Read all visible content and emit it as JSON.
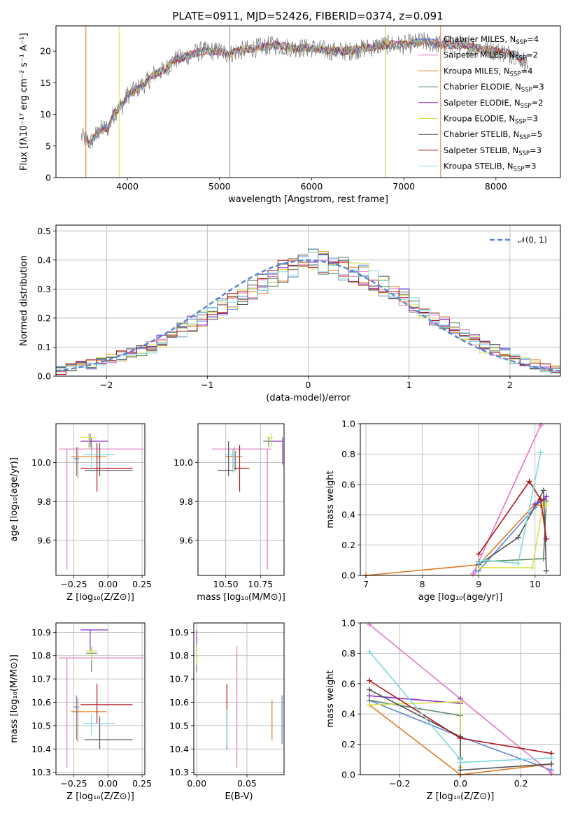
{
  "title": "PLATE=0911, MJD=52426, FIBERID=0374, z=0.091",
  "colors": {
    "Chabrier MILES": "#5b86d4",
    "Salpeter MILES": "#e377c2",
    "Kroupa MILES": "#e07b22",
    "Chabrier ELODIE": "#5e8a64",
    "Salpeter ELODIE": "#8b2fc9",
    "Kroupa ELODIE": "#d6e04a",
    "Chabrier STELIB": "#555555",
    "Salpeter STELIB": "#b0161c",
    "Kroupa STELIB": "#7fd8e0"
  },
  "chart_data": [
    {
      "id": "spectrum",
      "type": "line",
      "xlabel": "wavelength [Angstrom, rest frame]",
      "ylabel": "Flux [fλ10⁻¹⁷ erg cm⁻² s⁻¹ A⁻¹]",
      "xlim": [
        3225,
        8700
      ],
      "ylim": [
        0,
        24
      ],
      "xticks": [
        "4000",
        "5000",
        "6000",
        "7000",
        "8000"
      ],
      "yticks": [
        "0",
        "5",
        "10",
        "15",
        "20"
      ],
      "legend_position": "right",
      "legend": [
        "Chabrier MILES, N_SSP=4",
        "Salpeter MILES, N_SSP=2",
        "Kroupa MILES, N_SSP=4",
        "Chabrier ELODIE, N_SSP=3",
        "Salpeter ELODIE, N_SSP=2",
        "Kroupa ELODIE, N_SSP=3",
        "Chabrier STELIB, N_SSP=5",
        "Salpeter STELIB, N_SSP=3",
        "Kroupa STELIB, N_SSP=3"
      ],
      "continuum": {
        "x": [
          3500,
          3600,
          3700,
          3800,
          3850,
          3900,
          3950,
          4000,
          4100,
          4200,
          4300,
          4400,
          4500,
          4600,
          4700,
          4800,
          4900,
          5000,
          5100,
          5200,
          5400,
          5600,
          5800,
          6000,
          6200,
          6400,
          6600,
          6800,
          7000,
          7200,
          7400,
          7600,
          7800,
          8000,
          8200,
          8350
        ],
        "y": [
          6.5,
          5.5,
          7.5,
          8.0,
          10.0,
          11.0,
          11.5,
          13.0,
          14.0,
          15.0,
          16.5,
          17.0,
          18.5,
          19.0,
          19.5,
          20.0,
          20.0,
          20.0,
          19.5,
          20.0,
          20.5,
          21.0,
          20.5,
          20.5,
          20.0,
          20.0,
          20.5,
          21.0,
          21.0,
          21.5,
          21.0,
          21.0,
          20.5,
          20.0,
          19.5,
          18.0
        ]
      }
    },
    {
      "id": "residuals",
      "type": "bar",
      "xlabel": "(data-model)/error",
      "ylabel": "Normed distribution",
      "xlim": [
        -2.5,
        2.5
      ],
      "ylim": [
        0,
        0.52
      ],
      "xticks": [
        "−2",
        "−1",
        "0",
        "1",
        "2"
      ],
      "yticks": [
        "0.0",
        "0.1",
        "0.2",
        "0.3",
        "0.4",
        "0.5"
      ],
      "legend_position": "top-right",
      "gaussian_label": "𝒩(0, 1)",
      "bin_edges_start": -2.5,
      "bin_width": 0.1,
      "base_values": [
        0.02,
        0.03,
        0.035,
        0.04,
        0.05,
        0.06,
        0.07,
        0.08,
        0.09,
        0.1,
        0.12,
        0.14,
        0.16,
        0.18,
        0.2,
        0.22,
        0.24,
        0.26,
        0.28,
        0.3,
        0.32,
        0.34,
        0.36,
        0.38,
        0.4,
        0.4,
        0.39,
        0.38,
        0.37,
        0.36,
        0.35,
        0.33,
        0.31,
        0.29,
        0.27,
        0.25,
        0.22,
        0.2,
        0.18,
        0.16,
        0.14,
        0.12,
        0.1,
        0.09,
        0.08,
        0.06,
        0.05,
        0.04,
        0.03,
        0.025
      ]
    },
    {
      "id": "age-vs-Z",
      "type": "scatter",
      "xlabel": "Z [log₁₀(Z/Z⊙)]",
      "ylabel": "age  [log₁₀(age/yr)]",
      "xlim": [
        -0.38,
        0.27
      ],
      "ylim": [
        9.42,
        10.2
      ],
      "xticks": [
        "−0.25",
        "0.00",
        "0.25"
      ],
      "yticks": [
        "9.6",
        "9.8",
        "10.0"
      ],
      "points": [
        {
          "model": "Chabrier MILES",
          "x": -0.23,
          "xlo": -0.25,
          "xhi": -0.21,
          "y": 10.02,
          "ylo": 9.93,
          "yhi": 10.08
        },
        {
          "model": "Salpeter MILES",
          "x": -0.3,
          "xlo": -0.36,
          "xhi": 0.26,
          "y": 10.07,
          "ylo": 9.45,
          "yhi": 10.07
        },
        {
          "model": "Kroupa MILES",
          "x": -0.22,
          "xlo": -0.27,
          "xhi": -0.01,
          "y": 10.03,
          "ylo": 9.92,
          "yhi": 10.08
        },
        {
          "model": "Chabrier ELODIE",
          "x": -0.12,
          "xlo": -0.16,
          "xhi": -0.08,
          "y": 10.11,
          "ylo": 10.05,
          "yhi": 10.13
        },
        {
          "model": "Salpeter ELODIE",
          "x": -0.13,
          "xlo": -0.2,
          "xhi": 0.0,
          "y": 10.11,
          "ylo": 10.08,
          "yhi": 10.15
        },
        {
          "model": "Kroupa ELODIE",
          "x": -0.14,
          "xlo": -0.2,
          "xhi": -0.08,
          "y": 10.13,
          "ylo": 10.07,
          "yhi": 10.15
        },
        {
          "model": "Chabrier STELIB",
          "x": -0.06,
          "xlo": -0.17,
          "xhi": 0.18,
          "y": 9.96,
          "ylo": 9.93,
          "yhi": 10.1
        },
        {
          "model": "Salpeter STELIB",
          "x": -0.08,
          "xlo": -0.2,
          "xhi": 0.18,
          "y": 9.97,
          "ylo": 9.85,
          "yhi": 10.1
        },
        {
          "model": "Kroupa STELIB",
          "x": -0.12,
          "xlo": -0.18,
          "xhi": 0.05,
          "y": 10.04,
          "ylo": 9.95,
          "yhi": 10.07
        }
      ]
    },
    {
      "id": "age-vs-mass",
      "type": "scatter",
      "xlabel": "mass [log₁₀(M/M⊙)]",
      "ylabel": "",
      "xlim": [
        10.3,
        10.92
      ],
      "ylim": [
        9.42,
        10.2
      ],
      "xticks": [
        "10.50",
        "10.75"
      ],
      "yticks": [
        "9.6",
        "9.8",
        "10.0"
      ],
      "points": [
        {
          "model": "Chabrier MILES",
          "x": 10.57,
          "xlo": 10.5,
          "xhi": 10.6,
          "y": 10.03,
          "ylo": 9.96,
          "yhi": 10.06
        },
        {
          "model": "Salpeter MILES",
          "x": 10.8,
          "xlo": 10.4,
          "xhi": 10.83,
          "y": 10.07,
          "ylo": 9.45,
          "yhi": 10.07
        },
        {
          "model": "Kroupa MILES",
          "x": 10.56,
          "xlo": 10.5,
          "xhi": 10.62,
          "y": 10.03,
          "ylo": 9.95,
          "yhi": 10.08
        },
        {
          "model": "Chabrier ELODIE",
          "x": 10.81,
          "xlo": 10.77,
          "xhi": 10.84,
          "y": 10.11,
          "ylo": 10.08,
          "yhi": 10.13
        },
        {
          "model": "Salpeter ELODIE",
          "x": 10.91,
          "xlo": 10.82,
          "xhi": 10.91,
          "y": 10.11,
          "ylo": 9.99,
          "yhi": 10.13
        },
        {
          "model": "Kroupa ELODIE",
          "x": 10.83,
          "xlo": 10.79,
          "xhi": 10.84,
          "y": 10.13,
          "ylo": 10.08,
          "yhi": 10.15
        },
        {
          "model": "Chabrier STELIB",
          "x": 10.52,
          "xlo": 10.44,
          "xhi": 10.55,
          "y": 9.96,
          "ylo": 9.93,
          "yhi": 10.11
        },
        {
          "model": "Salpeter STELIB",
          "x": 10.6,
          "xlo": 10.56,
          "xhi": 10.67,
          "y": 9.97,
          "ylo": 9.85,
          "yhi": 10.09
        },
        {
          "model": "Kroupa STELIB",
          "x": 10.55,
          "xlo": 10.49,
          "xhi": 10.57,
          "y": 10.04,
          "ylo": 9.95,
          "yhi": 10.07
        }
      ]
    },
    {
      "id": "weight-vs-age",
      "type": "line",
      "xlabel": "age  [log₁₀(age/yr)]",
      "ylabel": "mass weight",
      "xlim": [
        6.9,
        10.45
      ],
      "ylim": [
        0,
        1.0
      ],
      "xticks": [
        "7",
        "8",
        "9",
        "10"
      ],
      "yticks": [
        "0.0",
        "0.2",
        "0.4",
        "0.6",
        "0.8",
        "1.0"
      ],
      "series": [
        {
          "model": "Chabrier MILES",
          "x": [
            8.95,
            9.0,
            10.0,
            10.1
          ],
          "y": [
            0.03,
            0.03,
            0.45,
            0.49
          ]
        },
        {
          "model": "Salpeter MILES",
          "x": [
            8.9,
            10.1
          ],
          "y": [
            0.01,
            0.99
          ]
        },
        {
          "model": "Kroupa MILES",
          "x": [
            7.0,
            9.0,
            10.0,
            10.1
          ],
          "y": [
            0.0,
            0.07,
            0.47,
            0.46
          ]
        },
        {
          "model": "Chabrier ELODIE",
          "x": [
            9.0,
            10.15,
            10.2
          ],
          "y": [
            0.09,
            0.11,
            0.49
          ]
        },
        {
          "model": "Salpeter ELODIE",
          "x": [
            10.0,
            10.15,
            10.2
          ],
          "y": [
            0.47,
            0.5,
            0.52
          ]
        },
        {
          "model": "Kroupa ELODIE",
          "x": [
            9.0,
            9.95,
            10.15,
            10.2
          ],
          "y": [
            0.05,
            0.05,
            0.48,
            0.46
          ]
        },
        {
          "model": "Chabrier STELIB",
          "x": [
            9.0,
            9.7,
            10.15,
            10.2
          ],
          "y": [
            0.07,
            0.25,
            0.56,
            0.03
          ]
        },
        {
          "model": "Salpeter STELIB",
          "x": [
            9.0,
            9.9,
            10.1,
            10.2
          ],
          "y": [
            0.14,
            0.62,
            0.5,
            0.24
          ]
        },
        {
          "model": "Kroupa STELIB",
          "x": [
            9.0,
            9.1,
            9.7,
            10.1
          ],
          "y": [
            0.08,
            0.1,
            0.08,
            0.81
          ]
        }
      ]
    },
    {
      "id": "mass-vs-Z",
      "type": "scatter",
      "xlabel": "Z [log₁₀(Z/Z⊙)]",
      "ylabel": "mass [log₁₀(M/M⊙)]",
      "xlim": [
        -0.38,
        0.27
      ],
      "ylim": [
        10.29,
        10.94
      ],
      "xticks": [
        "−0.25",
        "0.00",
        "0.25"
      ],
      "yticks": [
        "10.3",
        "10.4",
        "10.5",
        "10.6",
        "10.7",
        "10.8",
        "10.9"
      ],
      "points": [
        {
          "model": "Chabrier MILES",
          "x": -0.23,
          "xlo": -0.25,
          "xhi": -0.21,
          "y": 10.58,
          "ylo": 10.44,
          "yhi": 10.63
        },
        {
          "model": "Salpeter MILES",
          "x": -0.3,
          "xlo": -0.36,
          "xhi": 0.26,
          "y": 10.79,
          "ylo": 10.32,
          "yhi": 10.79
        },
        {
          "model": "Kroupa MILES",
          "x": -0.22,
          "xlo": -0.27,
          "xhi": -0.01,
          "y": 10.56,
          "ylo": 10.43,
          "yhi": 10.62
        },
        {
          "model": "Chabrier ELODIE",
          "x": -0.12,
          "xlo": -0.16,
          "xhi": -0.08,
          "y": 10.81,
          "ylo": 10.73,
          "yhi": 10.84
        },
        {
          "model": "Salpeter ELODIE",
          "x": -0.13,
          "xlo": -0.2,
          "xhi": 0.0,
          "y": 10.91,
          "ylo": 10.82,
          "yhi": 10.91
        },
        {
          "model": "Kroupa ELODIE",
          "x": -0.12,
          "xlo": -0.16,
          "xhi": -0.08,
          "y": 10.82,
          "ylo": 10.78,
          "yhi": 10.84
        },
        {
          "model": "Chabrier STELIB",
          "x": -0.06,
          "xlo": -0.17,
          "xhi": 0.18,
          "y": 10.44,
          "ylo": 10.4,
          "yhi": 10.54
        },
        {
          "model": "Salpeter STELIB",
          "x": -0.08,
          "xlo": -0.2,
          "xhi": 0.18,
          "y": 10.59,
          "ylo": 10.51,
          "yhi": 10.68
        },
        {
          "model": "Kroupa STELIB",
          "x": -0.12,
          "xlo": -0.18,
          "xhi": 0.05,
          "y": 10.51,
          "ylo": 10.46,
          "yhi": 10.55
        }
      ]
    },
    {
      "id": "mass-vs-EBV",
      "type": "scatter",
      "xlabel": "E(B-V)",
      "ylabel": "",
      "xlim": [
        -0.003,
        0.087
      ],
      "ylim": [
        10.29,
        10.94
      ],
      "xticks": [
        "0.00",
        "0.05"
      ],
      "yticks": [
        "10.3",
        "10.4",
        "10.5",
        "10.6",
        "10.7",
        "10.8",
        "10.9"
      ],
      "points": [
        {
          "model": "Chabrier MILES",
          "x": 0.085,
          "xlo": 0.085,
          "xhi": 0.085,
          "y": 10.58,
          "ylo": 10.42,
          "yhi": 10.63
        },
        {
          "model": "Salpeter MILES",
          "x": 0.04,
          "xlo": 0.04,
          "xhi": 0.04,
          "y": 10.79,
          "ylo": 10.32,
          "yhi": 10.84
        },
        {
          "model": "Kroupa MILES",
          "x": 0.075,
          "xlo": 0.075,
          "xhi": 0.075,
          "y": 10.56,
          "ylo": 10.44,
          "yhi": 10.61
        },
        {
          "model": "Chabrier ELODIE",
          "x": 0.0,
          "xlo": 0.0,
          "xhi": 0.0,
          "y": 10.81,
          "ylo": 10.73,
          "yhi": 10.84
        },
        {
          "model": "Salpeter ELODIE",
          "x": 0.0,
          "xlo": 0.0,
          "xhi": 0.0,
          "y": 10.91,
          "ylo": 10.82,
          "yhi": 10.91
        },
        {
          "model": "Kroupa ELODIE",
          "x": 0.0,
          "xlo": 0.0,
          "xhi": 0.0,
          "y": 10.82,
          "ylo": 10.76,
          "yhi": 10.85
        },
        {
          "model": "Chabrier STELIB",
          "x": 0.03,
          "xlo": 0.03,
          "xhi": 0.03,
          "y": 10.44,
          "ylo": 10.4,
          "yhi": 10.55
        },
        {
          "model": "Salpeter STELIB",
          "x": 0.03,
          "xlo": 0.03,
          "xhi": 0.03,
          "y": 10.59,
          "ylo": 10.52,
          "yhi": 10.68
        },
        {
          "model": "Kroupa STELIB",
          "x": 0.03,
          "xlo": 0.03,
          "xhi": 0.03,
          "y": 10.51,
          "ylo": 10.41,
          "yhi": 10.57
        }
      ]
    },
    {
      "id": "weight-vs-Z",
      "type": "line",
      "xlabel": "Z [log₁₀(Z/Z⊙)]",
      "ylabel": "mass weight",
      "xlim": [
        -0.33,
        0.33
      ],
      "ylim": [
        0,
        1.0
      ],
      "xticks": [
        "−0.2",
        "0.0",
        "0.2"
      ],
      "yticks": [
        "0.0",
        "0.2",
        "0.4",
        "0.6",
        "0.8",
        "1.0"
      ],
      "series": [
        {
          "model": "Chabrier MILES",
          "x": [
            -0.3,
            0.0,
            0.3
          ],
          "y": [
            0.49,
            0.25,
            0.03
          ]
        },
        {
          "model": "Salpeter MILES",
          "x": [
            -0.3,
            0.3
          ],
          "y": [
            0.99,
            0.01
          ]
        },
        {
          "model": "Kroupa MILES",
          "x": [
            -0.3,
            0.0,
            0.3
          ],
          "y": [
            0.46,
            0.0,
            0.07
          ]
        },
        {
          "model": "Chabrier ELODIE",
          "x": [
            -0.3,
            0.0,
            0.0
          ],
          "y": [
            0.49,
            0.39,
            0.11
          ]
        },
        {
          "model": "Salpeter ELODIE",
          "x": [
            -0.3,
            0.0,
            0.0
          ],
          "y": [
            0.52,
            0.47,
            0.5
          ]
        },
        {
          "model": "Kroupa ELODIE",
          "x": [
            -0.3,
            0.0,
            0.0
          ],
          "y": [
            0.46,
            0.48,
            0.05
          ]
        },
        {
          "model": "Chabrier STELIB",
          "x": [
            -0.3,
            0.0,
            0.0,
            0.3
          ],
          "y": [
            0.56,
            0.25,
            0.03,
            0.07
          ]
        },
        {
          "model": "Salpeter STELIB",
          "x": [
            -0.3,
            0.0,
            0.3
          ],
          "y": [
            0.62,
            0.24,
            0.14
          ]
        },
        {
          "model": "Kroupa STELIB",
          "x": [
            -0.3,
            0.0,
            0.0,
            0.3
          ],
          "y": [
            0.81,
            0.1,
            0.08,
            0.11
          ]
        }
      ]
    }
  ]
}
